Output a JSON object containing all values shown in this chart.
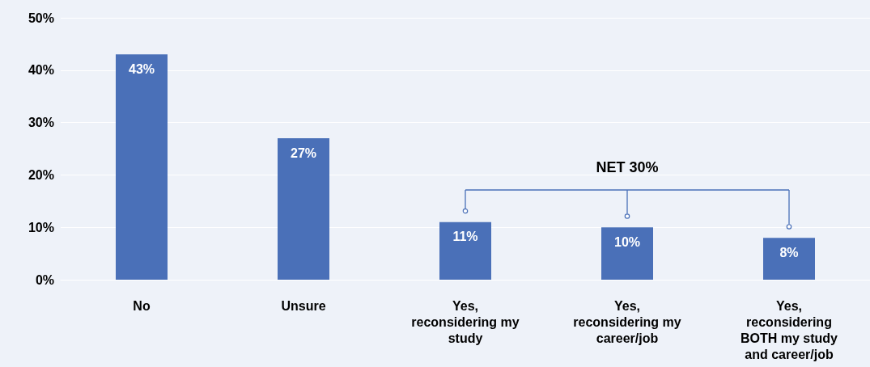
{
  "chart_data": {
    "type": "bar",
    "categories": [
      "No",
      "Unsure",
      "Yes,\nreconsidering my\nstudy",
      "Yes,\nreconsidering my\ncareer/job",
      "Yes,\nreconsidering\nBOTH my study\nand career/job"
    ],
    "values": [
      43,
      27,
      11,
      10,
      8
    ],
    "value_labels": [
      "43%",
      "27%",
      "11%",
      "10%",
      "8%"
    ],
    "color": "#4a70b8",
    "ylim": [
      0,
      50
    ],
    "yticks": [
      {
        "value": 0,
        "label": "0%"
      },
      {
        "value": 10,
        "label": "10%"
      },
      {
        "value": 20,
        "label": "20%"
      },
      {
        "value": 30,
        "label": "30%"
      },
      {
        "value": 40,
        "label": "40%"
      },
      {
        "value": 50,
        "label": "50%"
      }
    ],
    "grid": "y",
    "annotations": [
      "NET 30%"
    ]
  }
}
